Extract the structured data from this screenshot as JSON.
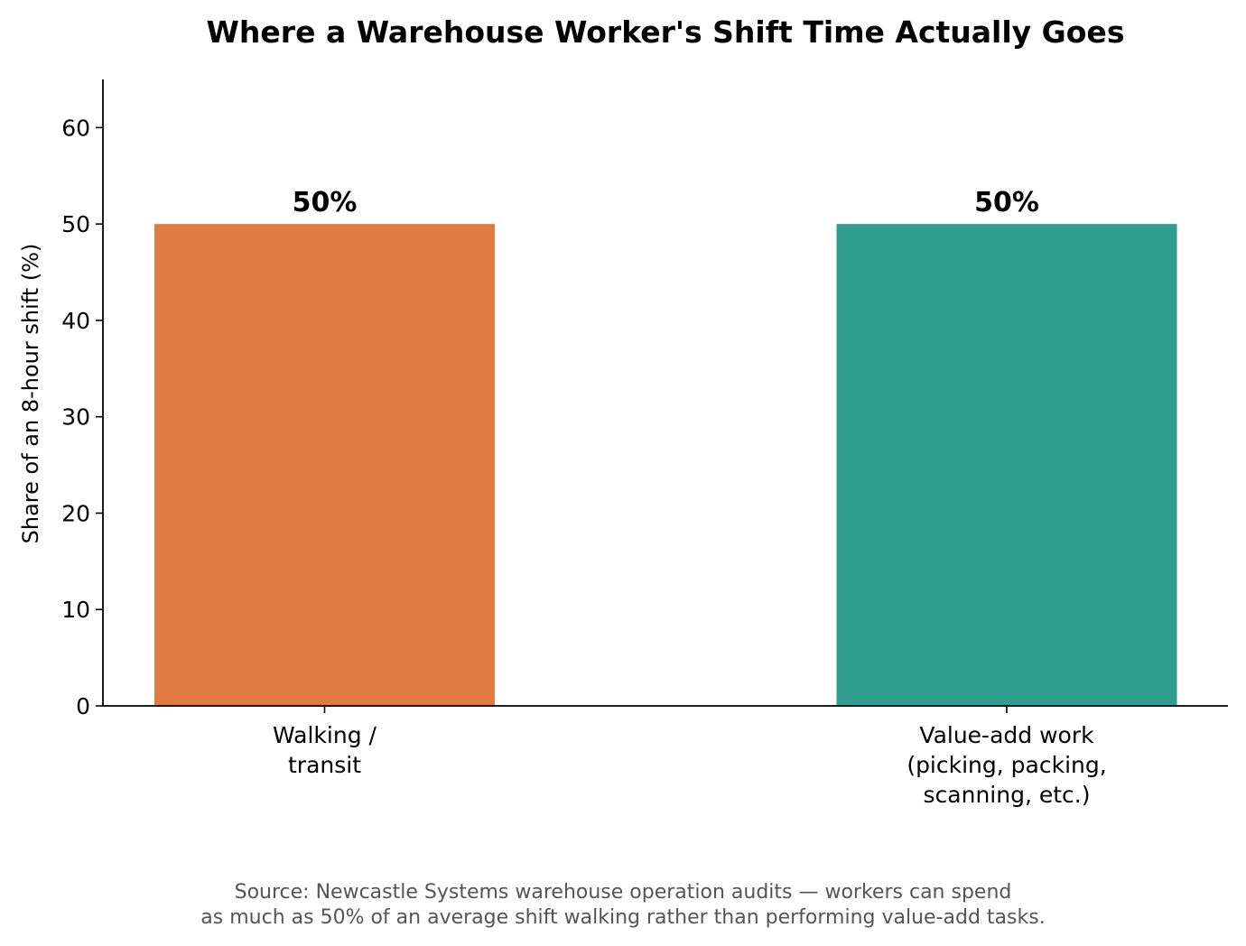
{
  "chart_data": {
    "type": "bar",
    "title": "Where a Warehouse Worker's Shift Time Actually Goes",
    "xlabel": "",
    "ylabel": "Share of an 8-hour shift (%)",
    "ylim": [
      0,
      65
    ],
    "yticks": [
      0,
      10,
      20,
      30,
      40,
      50,
      60
    ],
    "grid": false,
    "categories": [
      [
        "Walking /",
        "transit"
      ],
      [
        "Value-add work",
        "(picking, packing,",
        "scanning, etc.)"
      ]
    ],
    "values": [
      50,
      50
    ],
    "data_labels": [
      "50%",
      "50%"
    ],
    "colors": [
      "#e07b42",
      "#2f9e8e"
    ],
    "source_note": [
      "Source: Newcastle Systems warehouse operation audits — workers can spend",
      "as much as 50% of an average shift walking rather than performing value-add tasks."
    ]
  }
}
